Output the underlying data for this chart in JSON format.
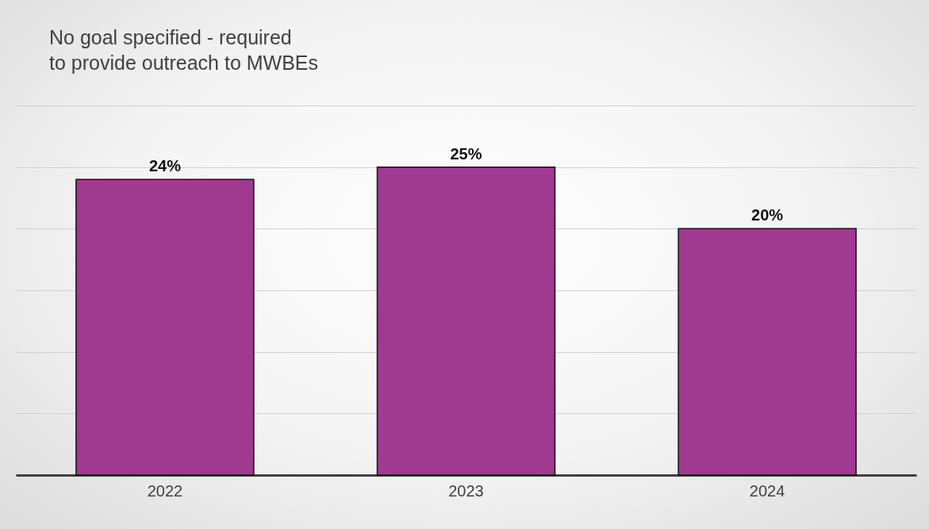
{
  "chart_data": {
    "type": "bar",
    "title": "No goal specified - required to provide outreach to MWBEs",
    "categories": [
      "2022",
      "2023",
      "2024"
    ],
    "values": [
      24,
      25,
      20
    ],
    "value_labels": [
      "24%",
      "25%",
      "20%"
    ],
    "color": "#a03a91",
    "ylim": [
      0,
      30
    ],
    "yticks": [
      {
        "value": 0,
        "label": null
      },
      {
        "value": 5,
        "label": null
      },
      {
        "value": 10,
        "label": null
      },
      {
        "value": 15,
        "label": null
      },
      {
        "value": 20,
        "label": null
      },
      {
        "value": 25,
        "label": null
      },
      {
        "value": 30,
        "label": null
      }
    ],
    "grid": "y",
    "tick_labels": "x"
  }
}
